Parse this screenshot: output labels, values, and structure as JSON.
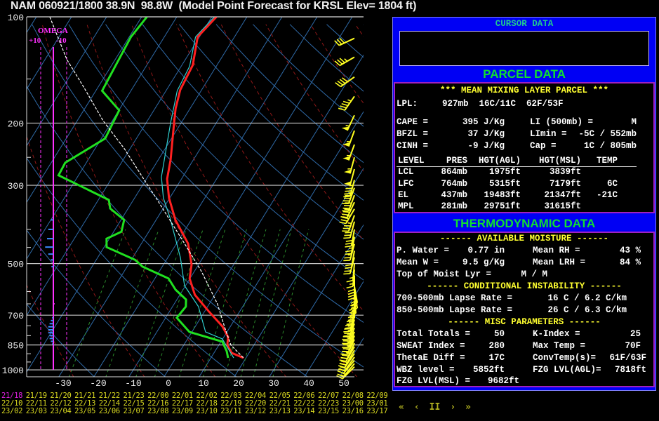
{
  "title": "NAM 060921/1800 38.9N  98.8W  (Model Point Forecast for KRSL Elev= 1804 ft)",
  "chart_data": {
    "type": "line",
    "subtype": "skew-T log-P sounding",
    "pressure_ticks": [
      "100",
      "200",
      "300",
      "500",
      "700",
      "850",
      "1000"
    ],
    "pressure_values": [
      100,
      200,
      300,
      500,
      700,
      850,
      1000
    ],
    "temp_ticks": [
      "-30",
      "-20",
      "-10",
      "0",
      "10",
      "20",
      "30",
      "40",
      "50"
    ],
    "temp_values": [
      -30,
      -20,
      -10,
      0,
      10,
      20,
      30,
      40,
      50
    ],
    "ylim_mb": [
      1000,
      100
    ],
    "xlim_c_at_1000mb": [
      -40,
      56
    ],
    "series": [
      {
        "name": "temperature",
        "color": "#ff2020",
        "points": [
          [
            100,
            -48.7
          ],
          [
            114,
            -50.5
          ],
          [
            137,
            -46.9
          ],
          [
            161,
            -46.1
          ],
          [
            182,
            -44.1
          ],
          [
            200,
            -42
          ],
          [
            254,
            -36.5
          ],
          [
            288,
            -34.1
          ],
          [
            326,
            -30.2
          ],
          [
            376,
            -24.5
          ],
          [
            439,
            -16.7
          ],
          [
            503,
            -12
          ],
          [
            551,
            -10.1
          ],
          [
            613,
            -5.7
          ],
          [
            681,
            1.0
          ],
          [
            753,
            7.7
          ],
          [
            807,
            11.2
          ],
          [
            850,
            12.4
          ],
          [
            895,
            15
          ],
          [
            925,
            19.3
          ]
        ]
      },
      {
        "name": "dewpoint",
        "color": "#20e020",
        "points": [
          [
            100,
            -68.5
          ],
          [
            114,
            -69.5
          ],
          [
            162,
            -68.2
          ],
          [
            184,
            -59.9
          ],
          [
            221,
            -58.9
          ],
          [
            259,
            -66
          ],
          [
            281,
            -65.7
          ],
          [
            330,
            -47
          ],
          [
            349,
            -45.1
          ],
          [
            376,
            -39.1
          ],
          [
            406,
            -37.8
          ],
          [
            425,
            -40.8
          ],
          [
            449,
            -39.3
          ],
          [
            488,
            -28.9
          ],
          [
            510,
            -25.6
          ],
          [
            551,
            -16.1
          ],
          [
            593,
            -12.1
          ],
          [
            632,
            -7.4
          ],
          [
            662,
            -6.2
          ],
          [
            712,
            -6.8
          ],
          [
            781,
            -0.7
          ],
          [
            832,
            10.4
          ],
          [
            885,
            13.3
          ],
          [
            925,
            14.9
          ]
        ]
      },
      {
        "name": "virtual-temperature",
        "color": "#30d0d0",
        "points": [
          [
            100,
            -49.3
          ],
          [
            114,
            -51.1
          ],
          [
            138,
            -47.6
          ],
          [
            162,
            -46.8
          ],
          [
            200,
            -43
          ],
          [
            284,
            -36.1
          ],
          [
            326,
            -31.8
          ],
          [
            370,
            -26.5
          ],
          [
            481,
            -16.4
          ],
          [
            577,
            -10.3
          ],
          [
            662,
            -2.6
          ],
          [
            781,
            3.9
          ],
          [
            817,
            9.9
          ],
          [
            925,
            16.5
          ]
        ]
      },
      {
        "name": "parcel",
        "color": "#ffffff",
        "points": [
          [
            100,
            -96.2
          ],
          [
            132,
            -83.8
          ],
          [
            159,
            -73.8
          ],
          [
            197,
            -62.6
          ],
          [
            236,
            -51.7
          ],
          [
            299,
            -38.7
          ],
          [
            327,
            -33.7
          ],
          [
            439,
            -17.7
          ],
          [
            526,
            -8
          ],
          [
            650,
            2.3
          ],
          [
            759,
            8.6
          ],
          [
            850,
            13.4
          ],
          [
            925,
            19.3
          ]
        ]
      }
    ],
    "winds_p_dir_kt": [
      [
        115,
        245,
        30
      ],
      [
        130,
        240,
        35
      ],
      [
        148,
        235,
        40
      ],
      [
        168,
        215,
        45
      ],
      [
        190,
        205,
        55
      ],
      [
        210,
        200,
        55
      ],
      [
        230,
        200,
        55
      ],
      [
        250,
        195,
        55
      ],
      [
        270,
        195,
        50
      ],
      [
        290,
        195,
        45
      ],
      [
        305,
        200,
        45
      ],
      [
        320,
        200,
        40
      ],
      [
        335,
        205,
        40
      ],
      [
        350,
        210,
        35
      ],
      [
        365,
        200,
        35
      ],
      [
        380,
        195,
        30
      ],
      [
        400,
        190,
        30
      ],
      [
        420,
        190,
        25
      ],
      [
        440,
        195,
        25
      ],
      [
        460,
        190,
        20
      ],
      [
        480,
        195,
        20
      ],
      [
        500,
        185,
        15
      ],
      [
        520,
        185,
        15
      ],
      [
        540,
        180,
        20
      ],
      [
        560,
        180,
        25
      ],
      [
        580,
        170,
        25
      ],
      [
        600,
        170,
        30
      ],
      [
        620,
        175,
        30
      ],
      [
        640,
        180,
        25
      ],
      [
        660,
        185,
        25
      ],
      [
        680,
        190,
        25
      ],
      [
        700,
        195,
        25
      ],
      [
        720,
        195,
        25
      ],
      [
        740,
        200,
        25
      ],
      [
        760,
        200,
        25
      ],
      [
        780,
        200,
        25
      ],
      [
        800,
        200,
        25
      ],
      [
        820,
        205,
        25
      ],
      [
        840,
        205,
        25
      ],
      [
        860,
        210,
        20
      ],
      [
        880,
        210,
        20
      ],
      [
        900,
        215,
        20
      ],
      [
        920,
        215,
        20
      ],
      [
        940,
        220,
        20
      ],
      [
        960,
        220,
        15
      ],
      [
        980,
        225,
        15
      ]
    ],
    "omega": {
      "label": "OMEGA",
      "plus": "+10",
      "minus": "-10",
      "values_p_ubs": [
        [
          376,
          2
        ],
        [
          400,
          4
        ],
        [
          425,
          5
        ],
        [
          449,
          6.5
        ],
        [
          470,
          4
        ],
        [
          488,
          2
        ],
        [
          510,
          1.5
        ],
        [
          650,
          -1
        ],
        [
          712,
          1
        ],
        [
          725,
          2
        ],
        [
          740,
          3
        ],
        [
          755,
          4
        ],
        [
          770,
          4
        ],
        [
          785,
          4
        ],
        [
          800,
          3
        ],
        [
          815,
          3
        ],
        [
          830,
          2
        ],
        [
          845,
          1
        ]
      ]
    }
  },
  "cursor": {
    "heading": "CURSOR DATA"
  },
  "parcel": {
    "heading": "PARCEL DATA",
    "subheading": "*** MEAN MIXING LAYER PARCEL ***",
    "lpl_label": "LPL:",
    "lpl_value": "927mb  16C/11C  62F/53F",
    "left": [
      {
        "label": "CAPE =",
        "value": "395 J/Kg"
      },
      {
        "label": "BFZL =",
        "value": "37 J/Kg"
      },
      {
        "label": "CINH =",
        "value": "-9 J/Kg"
      }
    ],
    "right": [
      {
        "label": "LI (500mb) =",
        "value": "M"
      },
      {
        "label": "LImin =",
        "value": "-5C / 552mb"
      },
      {
        "label": "Cap =",
        "value": "1C / 805mb"
      }
    ],
    "table": {
      "headers": [
        "LEVEL",
        "PRES",
        "HGT(AGL)",
        "HGT(MSL)",
        "TEMP"
      ],
      "rows": [
        [
          "LCL",
          "864mb",
          "1975ft",
          "3839ft",
          ""
        ],
        [
          "LFC",
          "764mb",
          "5315ft",
          "7179ft",
          "6C"
        ],
        [
          "EL",
          "437mb",
          "19483ft",
          "21347ft",
          "-21C"
        ],
        [
          "MPL",
          "281mb",
          "29751ft",
          "31615ft",
          ""
        ]
      ]
    }
  },
  "thermo": {
    "heading": "THERMODYNAMIC DATA",
    "moisture_heading": "------ AVAILABLE MOISTURE ------",
    "moisture_left": [
      {
        "label": "P. Water =",
        "value": "0.77 in"
      },
      {
        "label": "Mean W =",
        "value": "9.5 g/Kg"
      },
      {
        "label": "Top of Moist Lyr =",
        "value": "M / M"
      }
    ],
    "moisture_right": [
      {
        "label": "Mean RH =",
        "value": "43 %"
      },
      {
        "label": "Mean LRH =",
        "value": "84 %"
      }
    ],
    "instability_heading": "------ CONDITIONAL INSTABILITY ------",
    "lapse": [
      {
        "label": "700-500mb Lapse Rate =",
        "value": "16 C / 6.2 C/km"
      },
      {
        "label": "850-500mb Lapse Rate =",
        "value": "26 C / 6.3 C/km"
      }
    ],
    "misc_heading": "------ MISC PARAMETERS ------",
    "misc_left": [
      {
        "label": "Total Totals =",
        "value": "50"
      },
      {
        "label": "SWEAT Index =",
        "value": "280"
      },
      {
        "label": "ThetaE Diff =",
        "value": "17C"
      },
      {
        "label": "WBZ level =",
        "value": "5852ft"
      },
      {
        "label": "FZG LVL(MSL) =",
        "value": "9682ft"
      }
    ],
    "misc_right": [
      {
        "label": "K-Index =",
        "value": "25"
      },
      {
        "label": "Max Temp =",
        "value": "70F"
      },
      {
        "label": "ConvTemp(s)=",
        "value": "61F/63F"
      },
      {
        "label": "FZG LVL(AGL)=",
        "value": "7818ft"
      }
    ]
  },
  "times": {
    "current": "21/18",
    "list": [
      "21/18",
      "21/19",
      "21/20",
      "21/21",
      "21/22",
      "21/23",
      "22/00",
      "22/01",
      "22/02",
      "22/03",
      "22/04",
      "22/05",
      "22/06",
      "22/07",
      "22/08",
      "22/09",
      "22/10",
      "22/11",
      "22/12",
      "22/13",
      "22/14",
      "22/15",
      "22/16",
      "22/17",
      "22/18",
      "22/19",
      "22/20",
      "22/21",
      "22/22",
      "22/23",
      "23/00",
      "23/01",
      "23/02",
      "23/03",
      "23/04",
      "23/05",
      "23/06",
      "23/07",
      "23/08",
      "23/09",
      "23/10",
      "23/11",
      "23/12",
      "23/13",
      "23/14",
      "23/15",
      "23/16",
      "23/17"
    ]
  },
  "nav": {
    "first": "«",
    "prev": "‹",
    "pause": "II",
    "next": "›",
    "last": "»"
  },
  "colors": {
    "panel_bg": "#0000f4",
    "heading_green": "#10e030",
    "text_yellow": "#ffff30",
    "omega": "#ff30ff",
    "grid_blue": "#2f6aa8"
  }
}
